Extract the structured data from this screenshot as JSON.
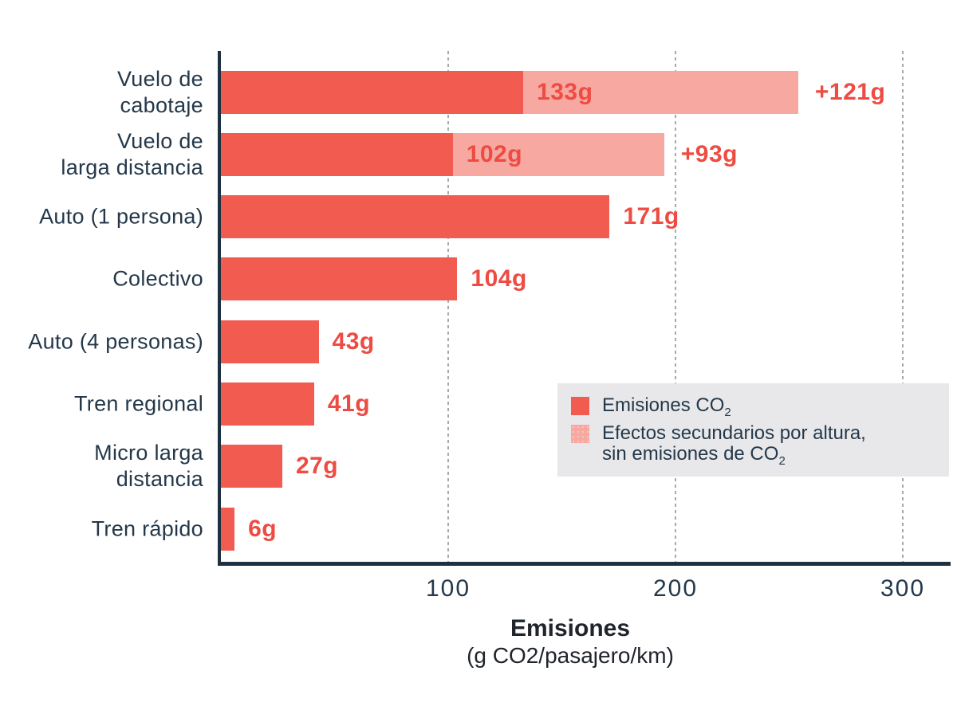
{
  "colors": {
    "bar_primary": "#F15B50",
    "bar_secondary": "#F7A8A1",
    "value_label": "#EE4B42",
    "category_text": "#24384A",
    "axis_line": "#1E3140",
    "gridline": "#A5AAAF",
    "legend_background": "#E8E8EA"
  },
  "chart_data": {
    "type": "bar",
    "orientation": "horizontal",
    "title": "",
    "xlabel": "Emisiones",
    "xlabel_units": "(g CO2/pasajero/km)",
    "ylabel": "",
    "xlim": [
      0,
      318
    ],
    "x_tick_values": [
      100,
      200,
      300
    ],
    "x_tick_labels": [
      "100",
      "200",
      "300"
    ],
    "grid": "vertical-dashed",
    "legend_position": "inside-right",
    "categories": [
      "Vuelo de cabotaje",
      "Vuelo de larga distancia",
      "Auto (1 persona)",
      "Colectivo",
      "Auto (4 personas)",
      "Tren regional",
      "Micro larga distancia",
      "Tren rápido"
    ],
    "category_label_lines": [
      [
        "Vuelo de",
        "cabotaje"
      ],
      [
        "Vuelo de",
        "larga distancia"
      ],
      [
        "Auto (1 persona)"
      ],
      [
        "Colectivo"
      ],
      [
        "Auto (4 personas)"
      ],
      [
        "Tren regional"
      ],
      [
        "Micro larga",
        "distancia"
      ],
      [
        "Tren rápido"
      ]
    ],
    "series": [
      {
        "name": "Emisiones CO2",
        "color": "#F15B50",
        "values": [
          133,
          102,
          171,
          104,
          43,
          41,
          27,
          6
        ],
        "labels": [
          "133g",
          "102g",
          "171g",
          "104g",
          "43g",
          "41g",
          "27g",
          "6g"
        ]
      },
      {
        "name": "Efectos secundarios por altura, sin emisiones de CO2",
        "color": "#F7A8A1",
        "values": [
          121,
          93,
          null,
          null,
          null,
          null,
          null,
          null
        ],
        "labels": [
          "+121g",
          "+93g",
          null,
          null,
          null,
          null,
          null,
          null
        ]
      }
    ]
  },
  "axis": {
    "title": "Emisiones",
    "subtitle": "(g CO2/pasajero/km)"
  },
  "legend": {
    "item1_pre": "Emisiones CO",
    "item1_sub": "2",
    "item2_line1": "Efectos secundarios por altura,",
    "item2_line2_pre": "sin emisiones de CO",
    "item2_line2_sub": "2"
  }
}
